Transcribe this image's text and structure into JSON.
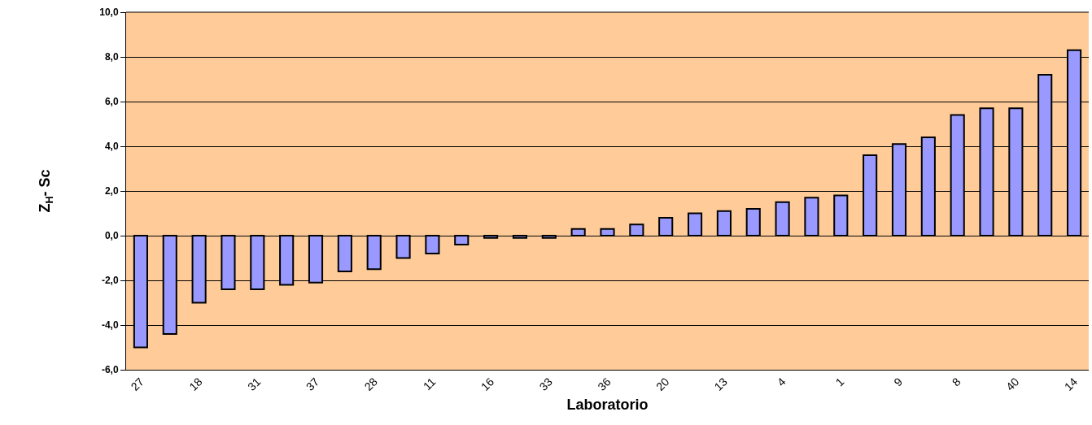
{
  "chart_data": {
    "type": "bar",
    "xlabel": "Laboratorio",
    "ylabel": "Z$_{H}$- Sc",
    "categories": [
      "27",
      null,
      "18",
      null,
      "31",
      null,
      "37",
      null,
      "28",
      null,
      "11",
      null,
      "16",
      null,
      "33",
      null,
      "36",
      null,
      "20",
      null,
      "13",
      null,
      "4",
      null,
      "1",
      null,
      "9",
      null,
      "8",
      null,
      "40",
      null,
      "14"
    ],
    "values": [
      -5.0,
      -4.4,
      -3.0,
      -2.4,
      -2.4,
      -2.2,
      -2.1,
      -1.6,
      -1.5,
      -1.0,
      -0.8,
      -0.4,
      -0.1,
      -0.1,
      -0.1,
      0.3,
      0.3,
      0.5,
      0.8,
      1.0,
      1.1,
      1.2,
      1.5,
      1.7,
      1.8,
      3.6,
      4.1,
      4.4,
      5.4,
      5.7,
      5.7,
      7.2,
      8.3
    ],
    "color": "#9999ff",
    "ylim": [
      -6,
      10
    ],
    "yticks": [
      {
        "value": -6,
        "label": "-6,0"
      },
      {
        "value": -4,
        "label": "-4,0"
      },
      {
        "value": -2,
        "label": "-2,0"
      },
      {
        "value": 0,
        "label": "0,0"
      },
      {
        "value": 2,
        "label": "2,0"
      },
      {
        "value": 4,
        "label": "4,0"
      },
      {
        "value": 6,
        "label": "6,0"
      },
      {
        "value": 8,
        "label": "8,0"
      },
      {
        "value": 10,
        "label": "10,0"
      }
    ],
    "grid": "y"
  }
}
